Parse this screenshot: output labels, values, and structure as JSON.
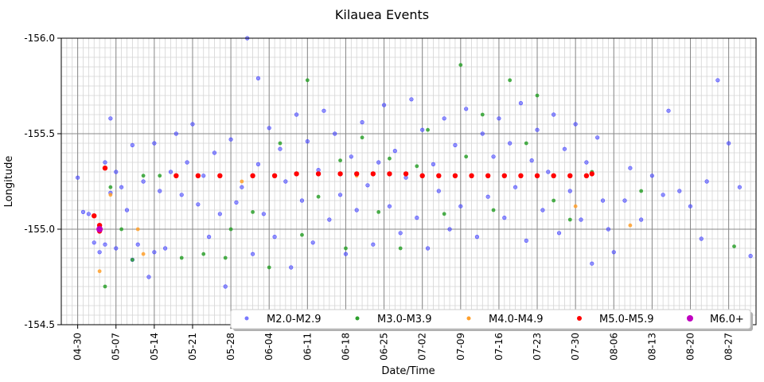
{
  "chart_data": {
    "type": "scatter",
    "title": "Kilauea Events",
    "xlabel": "Date/Time",
    "ylabel": "Longitude",
    "x_type": "date",
    "xlim": [
      "2018-04-27",
      "2018-09-01"
    ],
    "ylim": [
      -156.0,
      -154.5
    ],
    "y_tick_values": [
      -156.0,
      -155.5,
      -155.0,
      -154.5
    ],
    "y_tick_labels": [
      "-156.0",
      "-155.5",
      "-155.0",
      "-154.5"
    ],
    "x_tick_dates": [
      "2018-04-30",
      "2018-05-07",
      "2018-05-14",
      "2018-05-21",
      "2018-05-28",
      "2018-06-04",
      "2018-06-11",
      "2018-06-18",
      "2018-06-25",
      "2018-07-02",
      "2018-07-09",
      "2018-07-16",
      "2018-07-23",
      "2018-07-30",
      "2018-08-06",
      "2018-08-13",
      "2018-08-20",
      "2018-08-27"
    ],
    "x_tick_labels": [
      "04-30",
      "05-07",
      "05-14",
      "05-21",
      "05-28",
      "06-04",
      "06-11",
      "06-18",
      "06-25",
      "07-02",
      "07-09",
      "07-16",
      "07-23",
      "07-30",
      "08-06",
      "08-13",
      "08-20",
      "08-27"
    ],
    "grid": true,
    "legend_position": "bottom-right",
    "series": [
      {
        "name": "M2.0-M2.9",
        "color": "#4040ff",
        "points": [
          [
            "2018-04-30",
            -155.27
          ],
          [
            "2018-05-01",
            -155.09
          ],
          [
            "2018-05-02",
            -155.08
          ],
          [
            "2018-05-03",
            -154.93
          ],
          [
            "2018-05-04",
            -154.88
          ],
          [
            "2018-05-05",
            -154.92
          ],
          [
            "2018-05-05",
            -155.35
          ],
          [
            "2018-05-06",
            -155.58
          ],
          [
            "2018-05-06",
            -155.19
          ],
          [
            "2018-05-07",
            -155.3
          ],
          [
            "2018-05-07",
            -154.9
          ],
          [
            "2018-05-08",
            -155.22
          ],
          [
            "2018-05-09",
            -155.1
          ],
          [
            "2018-05-10",
            -155.44
          ],
          [
            "2018-05-10",
            -154.84
          ],
          [
            "2018-05-11",
            -154.92
          ],
          [
            "2018-05-12",
            -155.25
          ],
          [
            "2018-05-13",
            -154.75
          ],
          [
            "2018-05-14",
            -155.45
          ],
          [
            "2018-05-14",
            -154.88
          ],
          [
            "2018-05-15",
            -155.2
          ],
          [
            "2018-05-16",
            -154.9
          ],
          [
            "2018-05-17",
            -155.3
          ],
          [
            "2018-05-18",
            -155.5
          ],
          [
            "2018-05-19",
            -155.18
          ],
          [
            "2018-05-20",
            -155.35
          ],
          [
            "2018-05-21",
            -155.55
          ],
          [
            "2018-05-22",
            -155.13
          ],
          [
            "2018-05-23",
            -155.28
          ],
          [
            "2018-05-24",
            -154.96
          ],
          [
            "2018-05-25",
            -155.4
          ],
          [
            "2018-05-26",
            -155.08
          ],
          [
            "2018-05-27",
            -154.7
          ],
          [
            "2018-05-28",
            -155.47
          ],
          [
            "2018-05-29",
            -155.14
          ],
          [
            "2018-05-30",
            -155.22
          ],
          [
            "2018-05-31",
            -156.0
          ],
          [
            "2018-06-01",
            -154.87
          ],
          [
            "2018-06-02",
            -155.34
          ],
          [
            "2018-06-02",
            -155.79
          ],
          [
            "2018-06-03",
            -155.08
          ],
          [
            "2018-06-04",
            -155.53
          ],
          [
            "2018-06-05",
            -154.96
          ],
          [
            "2018-06-06",
            -155.42
          ],
          [
            "2018-06-07",
            -155.25
          ],
          [
            "2018-06-08",
            -154.8
          ],
          [
            "2018-06-09",
            -155.6
          ],
          [
            "2018-06-10",
            -155.15
          ],
          [
            "2018-06-11",
            -155.46
          ],
          [
            "2018-06-12",
            -154.93
          ],
          [
            "2018-06-13",
            -155.31
          ],
          [
            "2018-06-14",
            -155.62
          ],
          [
            "2018-06-15",
            -155.05
          ],
          [
            "2018-06-16",
            -155.5
          ],
          [
            "2018-06-17",
            -155.18
          ],
          [
            "2018-06-18",
            -154.87
          ],
          [
            "2018-06-19",
            -155.38
          ],
          [
            "2018-06-20",
            -155.1
          ],
          [
            "2018-06-21",
            -155.56
          ],
          [
            "2018-06-22",
            -155.23
          ],
          [
            "2018-06-23",
            -154.92
          ],
          [
            "2018-06-24",
            -155.35
          ],
          [
            "2018-06-25",
            -155.65
          ],
          [
            "2018-06-26",
            -155.12
          ],
          [
            "2018-06-27",
            -155.41
          ],
          [
            "2018-06-28",
            -154.98
          ],
          [
            "2018-06-29",
            -155.27
          ],
          [
            "2018-06-30",
            -155.68
          ],
          [
            "2018-07-01",
            -155.06
          ],
          [
            "2018-07-02",
            -155.52
          ],
          [
            "2018-07-03",
            -154.9
          ],
          [
            "2018-07-04",
            -155.34
          ],
          [
            "2018-07-05",
            -155.2
          ],
          [
            "2018-07-06",
            -155.58
          ],
          [
            "2018-07-07",
            -155.0
          ],
          [
            "2018-07-08",
            -155.44
          ],
          [
            "2018-07-09",
            -155.12
          ],
          [
            "2018-07-10",
            -155.63
          ],
          [
            "2018-07-11",
            -155.28
          ],
          [
            "2018-07-12",
            -154.96
          ],
          [
            "2018-07-13",
            -155.5
          ],
          [
            "2018-07-14",
            -155.17
          ],
          [
            "2018-07-15",
            -155.38
          ],
          [
            "2018-07-16",
            -155.58
          ],
          [
            "2018-07-17",
            -155.06
          ],
          [
            "2018-07-18",
            -155.45
          ],
          [
            "2018-07-19",
            -155.22
          ],
          [
            "2018-07-20",
            -155.66
          ],
          [
            "2018-07-21",
            -154.94
          ],
          [
            "2018-07-22",
            -155.36
          ],
          [
            "2018-07-23",
            -155.52
          ],
          [
            "2018-07-24",
            -155.1
          ],
          [
            "2018-07-25",
            -155.3
          ],
          [
            "2018-07-26",
            -155.6
          ],
          [
            "2018-07-27",
            -154.98
          ],
          [
            "2018-07-28",
            -155.42
          ],
          [
            "2018-07-29",
            -155.2
          ],
          [
            "2018-07-30",
            -155.55
          ],
          [
            "2018-07-31",
            -155.05
          ],
          [
            "2018-08-01",
            -155.35
          ],
          [
            "2018-08-02",
            -154.82
          ],
          [
            "2018-08-03",
            -155.48
          ],
          [
            "2018-08-04",
            -155.15
          ],
          [
            "2018-08-05",
            -155.0
          ],
          [
            "2018-08-06",
            -154.88
          ],
          [
            "2018-08-08",
            -155.15
          ],
          [
            "2018-08-09",
            -155.32
          ],
          [
            "2018-08-11",
            -155.05
          ],
          [
            "2018-08-13",
            -155.28
          ],
          [
            "2018-08-15",
            -155.18
          ],
          [
            "2018-08-16",
            -155.62
          ],
          [
            "2018-08-18",
            -155.2
          ],
          [
            "2018-08-20",
            -155.12
          ],
          [
            "2018-08-22",
            -154.95
          ],
          [
            "2018-08-23",
            -155.25
          ],
          [
            "2018-08-25",
            -155.78
          ],
          [
            "2018-08-27",
            -155.45
          ],
          [
            "2018-08-29",
            -155.22
          ],
          [
            "2018-08-31",
            -154.86
          ]
        ]
      },
      {
        "name": "M3.0-M3.9",
        "color": "#2ca02c",
        "points": [
          [
            "2018-05-05",
            -154.7
          ],
          [
            "2018-05-06",
            -155.22
          ],
          [
            "2018-05-08",
            -155.0
          ],
          [
            "2018-05-10",
            -154.84
          ],
          [
            "2018-05-12",
            -155.28
          ],
          [
            "2018-05-15",
            -155.28
          ],
          [
            "2018-05-19",
            -154.85
          ],
          [
            "2018-05-23",
            -154.87
          ],
          [
            "2018-05-27",
            -154.85
          ],
          [
            "2018-05-28",
            -155.0
          ],
          [
            "2018-06-01",
            -155.09
          ],
          [
            "2018-06-04",
            -154.8
          ],
          [
            "2018-06-06",
            -155.45
          ],
          [
            "2018-06-10",
            -154.97
          ],
          [
            "2018-06-11",
            -155.78
          ],
          [
            "2018-06-13",
            -155.17
          ],
          [
            "2018-06-17",
            -155.36
          ],
          [
            "2018-06-18",
            -154.9
          ],
          [
            "2018-06-21",
            -155.48
          ],
          [
            "2018-06-24",
            -155.09
          ],
          [
            "2018-06-26",
            -155.37
          ],
          [
            "2018-06-28",
            -154.9
          ],
          [
            "2018-07-01",
            -155.33
          ],
          [
            "2018-07-03",
            -155.52
          ],
          [
            "2018-07-06",
            -155.08
          ],
          [
            "2018-07-09",
            -155.86
          ],
          [
            "2018-07-10",
            -155.38
          ],
          [
            "2018-07-13",
            -155.6
          ],
          [
            "2018-07-15",
            -155.1
          ],
          [
            "2018-07-18",
            -155.78
          ],
          [
            "2018-07-21",
            -155.45
          ],
          [
            "2018-07-23",
            -155.7
          ],
          [
            "2018-07-26",
            -155.15
          ],
          [
            "2018-07-29",
            -155.05
          ],
          [
            "2018-08-02",
            -155.3
          ],
          [
            "2018-08-11",
            -155.2
          ],
          [
            "2018-08-28",
            -154.91
          ]
        ]
      },
      {
        "name": "M4.0-M4.9",
        "color": "#ff9f2a",
        "points": [
          [
            "2018-05-04",
            -154.78
          ],
          [
            "2018-05-06",
            -155.18
          ],
          [
            "2018-05-11",
            -155.0
          ],
          [
            "2018-05-12",
            -154.87
          ],
          [
            "2018-05-22",
            -155.28
          ],
          [
            "2018-05-30",
            -155.25
          ],
          [
            "2018-06-20",
            -155.28
          ],
          [
            "2018-07-30",
            -155.12
          ],
          [
            "2018-08-09",
            -155.02
          ]
        ]
      },
      {
        "name": "M5.0-M5.9",
        "color": "#ff0000",
        "points": [
          [
            "2018-05-03",
            -155.07
          ],
          [
            "2018-05-04",
            -154.99
          ],
          [
            "2018-05-04",
            -155.02
          ],
          [
            "2018-05-05",
            -155.32
          ],
          [
            "2018-05-18",
            -155.28
          ],
          [
            "2018-05-22",
            -155.28
          ],
          [
            "2018-05-26",
            -155.28
          ],
          [
            "2018-06-01",
            -155.28
          ],
          [
            "2018-06-05",
            -155.28
          ],
          [
            "2018-06-09",
            -155.29
          ],
          [
            "2018-06-13",
            -155.29
          ],
          [
            "2018-06-17",
            -155.29
          ],
          [
            "2018-06-20",
            -155.29
          ],
          [
            "2018-06-23",
            -155.29
          ],
          [
            "2018-06-26",
            -155.29
          ],
          [
            "2018-06-29",
            -155.29
          ],
          [
            "2018-07-02",
            -155.28
          ],
          [
            "2018-07-05",
            -155.28
          ],
          [
            "2018-07-08",
            -155.28
          ],
          [
            "2018-07-11",
            -155.28
          ],
          [
            "2018-07-14",
            -155.28
          ],
          [
            "2018-07-17",
            -155.28
          ],
          [
            "2018-07-20",
            -155.28
          ],
          [
            "2018-07-23",
            -155.28
          ],
          [
            "2018-07-26",
            -155.28
          ],
          [
            "2018-07-29",
            -155.28
          ],
          [
            "2018-08-01",
            -155.28
          ],
          [
            "2018-08-02",
            -155.29
          ]
        ]
      },
      {
        "name": "M6.0+",
        "color": "#c000c0",
        "points": [
          [
            "2018-05-04",
            -155.0
          ]
        ]
      }
    ]
  }
}
